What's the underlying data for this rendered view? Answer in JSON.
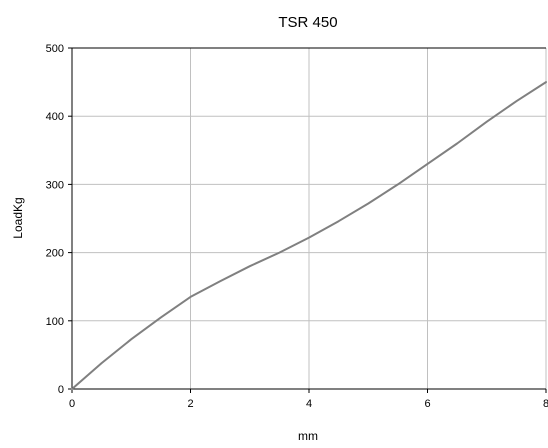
{
  "chart_data": {
    "type": "line",
    "title": "TSR 450",
    "xlabel": "mm",
    "ylabel": "LoadKg",
    "xlim": [
      0,
      8
    ],
    "ylim": [
      0,
      500
    ],
    "x_ticks": [
      0,
      2,
      4,
      6,
      8
    ],
    "y_ticks": [
      0,
      100,
      200,
      300,
      400,
      500
    ],
    "grid": true,
    "legend": "none",
    "colors": {
      "line": "#808080",
      "grid": "#c0c0c0",
      "axis": "#000000"
    },
    "series": [
      {
        "x": [
          0,
          0.5,
          1,
          1.5,
          2,
          2.5,
          3,
          3.5,
          4,
          4.5,
          5,
          5.5,
          6,
          6.5,
          7,
          7.5,
          8
        ],
        "y": [
          0,
          38,
          73,
          105,
          135,
          158,
          180,
          200,
          222,
          246,
          272,
          300,
          330,
          360,
          392,
          422,
          450
        ]
      }
    ]
  }
}
